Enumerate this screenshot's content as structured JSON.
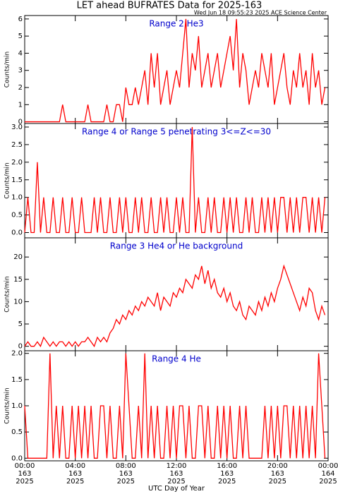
{
  "title": "LET ahead BUFRATES Data for 2025-163",
  "timestamp": "Wed Jun 18 09:55:23 2025 ACE Science Center",
  "xlabel": "UTC Day of Year",
  "chart_data": [
    {
      "type": "line",
      "title": "Range 2 He3",
      "ylabel": "Counts/min",
      "color": "#ff0000",
      "xlim": [
        0,
        24
      ],
      "ylim": [
        -0.1,
        6.2
      ],
      "yticks": [
        0,
        1,
        2,
        3,
        4,
        5,
        6
      ],
      "x": [
        0,
        0.25,
        0.5,
        0.75,
        1,
        1.25,
        1.5,
        1.75,
        2,
        2.25,
        2.5,
        2.75,
        3,
        3.25,
        3.5,
        3.75,
        4,
        4.25,
        4.5,
        4.75,
        5,
        5.25,
        5.5,
        5.75,
        6,
        6.25,
        6.5,
        6.75,
        7,
        7.25,
        7.5,
        7.75,
        8,
        8.25,
        8.5,
        8.75,
        9,
        9.25,
        9.5,
        9.75,
        10,
        10.25,
        10.5,
        10.75,
        11,
        11.25,
        11.5,
        11.75,
        12,
        12.25,
        12.5,
        12.75,
        13,
        13.25,
        13.5,
        13.75,
        14,
        14.25,
        14.5,
        14.75,
        15,
        15.25,
        15.5,
        15.75,
        16,
        16.25,
        16.5,
        16.75,
        17,
        17.25,
        17.5,
        17.75,
        18,
        18.25,
        18.5,
        18.75,
        19,
        19.25,
        19.5,
        19.75,
        20,
        20.25,
        20.5,
        20.75,
        21,
        21.25,
        21.5,
        21.75,
        22,
        22.25,
        22.5,
        22.75,
        23,
        23.25,
        23.5,
        23.75
      ],
      "values": [
        0,
        0,
        0,
        0,
        0,
        0,
        0,
        0,
        0,
        0,
        0,
        0,
        1,
        0,
        0,
        0,
        0,
        0,
        0,
        0,
        1,
        0,
        0,
        0,
        0,
        0,
        1,
        0,
        0,
        1,
        1,
        0,
        2,
        1,
        1,
        2,
        1,
        2,
        3,
        1,
        4,
        2,
        4,
        1,
        2,
        3,
        1,
        2,
        3,
        2,
        4,
        6,
        2,
        4,
        3,
        5,
        2,
        3,
        4,
        2,
        3,
        4,
        2,
        3,
        4,
        5,
        3,
        6,
        2,
        4,
        3,
        1,
        2,
        3,
        2,
        4,
        3,
        2,
        4,
        1,
        2,
        3,
        4,
        2,
        1,
        3,
        2,
        4,
        2,
        3,
        1,
        4,
        2,
        3,
        1,
        2
      ]
    },
    {
      "type": "line",
      "title": "Range 4 or Range 5 penetrating 3<=Z<=30",
      "ylabel": "Counts/min",
      "color": "#ff0000",
      "xlim": [
        0,
        24
      ],
      "ylim": [
        -0.15,
        3.1
      ],
      "yticks": [
        {
          "value": 0,
          "label": "0.0"
        },
        0.5,
        {
          "value": 1,
          "label": "1.0"
        },
        1.5,
        {
          "value": 2,
          "label": "2.0"
        },
        2.5,
        {
          "value": 3,
          "label": "3.0"
        }
      ],
      "x": [
        0,
        0.25,
        0.5,
        0.75,
        1,
        1.25,
        1.5,
        1.75,
        2,
        2.25,
        2.5,
        2.75,
        3,
        3.25,
        3.5,
        3.75,
        4,
        4.25,
        4.5,
        4.75,
        5,
        5.25,
        5.5,
        5.75,
        6,
        6.25,
        6.5,
        6.75,
        7,
        7.25,
        7.5,
        7.75,
        8,
        8.25,
        8.5,
        8.75,
        9,
        9.25,
        9.5,
        9.75,
        10,
        10.25,
        10.5,
        10.75,
        11,
        11.25,
        11.5,
        11.75,
        12,
        12.25,
        12.5,
        12.75,
        13,
        13.25,
        13.5,
        13.75,
        14,
        14.25,
        14.5,
        14.75,
        15,
        15.25,
        15.5,
        15.75,
        16,
        16.25,
        16.5,
        16.75,
        17,
        17.25,
        17.5,
        17.75,
        18,
        18.25,
        18.5,
        18.75,
        19,
        19.25,
        19.5,
        19.75,
        20,
        20.25,
        20.5,
        20.75,
        21,
        21.25,
        21.5,
        21.75,
        22,
        22.25,
        22.5,
        22.75,
        23,
        23.25,
        23.5,
        23.75
      ],
      "values": [
        0,
        1,
        0,
        0,
        2,
        0,
        1,
        0,
        0,
        1,
        0,
        0,
        1,
        0,
        0,
        1,
        0,
        0,
        1,
        0,
        0,
        0,
        1,
        0,
        1,
        0,
        0,
        1,
        0,
        0,
        1,
        0,
        1,
        0,
        0,
        1,
        0,
        1,
        0,
        0,
        1,
        0,
        0,
        1,
        0,
        1,
        0,
        0,
        1,
        0,
        1,
        0,
        0,
        3,
        0,
        1,
        0,
        0,
        1,
        0,
        1,
        0,
        0,
        1,
        0,
        1,
        0,
        1,
        0,
        0,
        1,
        0,
        1,
        0,
        0,
        1,
        0,
        1,
        0,
        1,
        0,
        1,
        1,
        0,
        1,
        0,
        1,
        0,
        1,
        1,
        0,
        1,
        0,
        1,
        0,
        1
      ]
    },
    {
      "type": "line",
      "title": "Range 3 He4 or He background",
      "ylabel": "Counts/min",
      "color": "#ff0000",
      "xlim": [
        0,
        24
      ],
      "ylim": [
        -1,
        24.3
      ],
      "yticks": [
        0,
        5,
        10,
        15,
        20
      ],
      "x": [
        0,
        0.25,
        0.5,
        0.75,
        1,
        1.25,
        1.5,
        1.75,
        2,
        2.25,
        2.5,
        2.75,
        3,
        3.25,
        3.5,
        3.75,
        4,
        4.25,
        4.5,
        4.75,
        5,
        5.25,
        5.5,
        5.75,
        6,
        6.25,
        6.5,
        6.75,
        7,
        7.25,
        7.5,
        7.75,
        8,
        8.25,
        8.5,
        8.75,
        9,
        9.25,
        9.5,
        9.75,
        10,
        10.25,
        10.5,
        10.75,
        11,
        11.25,
        11.5,
        11.75,
        12,
        12.25,
        12.5,
        12.75,
        13,
        13.25,
        13.5,
        13.75,
        14,
        14.25,
        14.5,
        14.75,
        15,
        15.25,
        15.5,
        15.75,
        16,
        16.25,
        16.5,
        16.75,
        17,
        17.25,
        17.5,
        17.75,
        18,
        18.25,
        18.5,
        18.75,
        19,
        19.25,
        19.5,
        19.75,
        20,
        20.25,
        20.5,
        20.75,
        21,
        21.25,
        21.5,
        21.75,
        22,
        22.25,
        22.5,
        22.75,
        23,
        23.25,
        23.5,
        23.75
      ],
      "values": [
        0,
        1,
        0,
        0,
        1,
        0,
        2,
        1,
        0,
        1,
        0,
        1,
        1,
        0,
        1,
        0,
        1,
        0,
        1,
        1,
        2,
        1,
        0,
        2,
        1,
        2,
        1,
        3,
        4,
        6,
        5,
        7,
        6,
        8,
        7,
        9,
        8,
        10,
        9,
        11,
        10,
        9,
        12,
        8,
        11,
        10,
        9,
        12,
        11,
        13,
        12,
        15,
        14,
        13,
        16,
        15,
        18,
        14,
        17,
        13,
        15,
        12,
        11,
        13,
        10,
        12,
        9,
        8,
        10,
        7,
        6,
        9,
        8,
        7,
        10,
        8,
        11,
        9,
        12,
        10,
        13,
        15,
        18,
        16,
        14,
        12,
        10,
        8,
        11,
        9,
        13,
        12,
        8,
        6,
        9,
        7
      ]
    },
    {
      "type": "line",
      "title": "Range 4 He",
      "ylabel": "Counts/min",
      "color": "#ff0000",
      "xlim": [
        0,
        24
      ],
      "ylim": [
        -0.05,
        2.05
      ],
      "yticks": [
        {
          "value": 0,
          "label": "0.0"
        },
        0.5,
        {
          "value": 1,
          "label": "1.0"
        },
        1.5,
        {
          "value": 2,
          "label": "2.0"
        }
      ],
      "xticks": [
        {
          "value": 0,
          "label": "00:00"
        },
        {
          "value": 4,
          "label": "04:00"
        },
        {
          "value": 8,
          "label": "08:00"
        },
        {
          "value": 12,
          "label": "12:00"
        },
        {
          "value": 16,
          "label": "16:00"
        },
        {
          "value": 20,
          "label": "20:00"
        },
        {
          "value": 24,
          "label": "00:00"
        }
      ],
      "xtick_days": [
        "163",
        "163",
        "163",
        "163",
        "163",
        "163",
        "164"
      ],
      "xtick_years": [
        "2025",
        "2025",
        "2025",
        "2025",
        "2025",
        "2025",
        "2025"
      ],
      "x": [
        0,
        0.25,
        0.5,
        0.75,
        1,
        1.25,
        1.5,
        1.75,
        2,
        2.25,
        2.5,
        2.75,
        3,
        3.25,
        3.5,
        3.75,
        4,
        4.25,
        4.5,
        4.75,
        5,
        5.25,
        5.5,
        5.75,
        6,
        6.25,
        6.5,
        6.75,
        7,
        7.25,
        7.5,
        7.75,
        8,
        8.25,
        8.5,
        8.75,
        9,
        9.25,
        9.5,
        9.75,
        10,
        10.25,
        10.5,
        10.75,
        11,
        11.25,
        11.5,
        11.75,
        12,
        12.25,
        12.5,
        12.75,
        13,
        13.25,
        13.5,
        13.75,
        14,
        14.25,
        14.5,
        14.75,
        15,
        15.25,
        15.5,
        15.75,
        16,
        16.25,
        16.5,
        16.75,
        17,
        17.25,
        17.5,
        17.75,
        18,
        18.25,
        18.5,
        18.75,
        19,
        19.25,
        19.5,
        19.75,
        20,
        20.25,
        20.5,
        20.75,
        21,
        21.25,
        21.5,
        21.75,
        22,
        22.25,
        22.5,
        22.75,
        23,
        23.25,
        23.5,
        23.75
      ],
      "values": [
        1,
        0,
        0,
        0,
        0,
        0,
        0,
        0,
        2,
        0,
        1,
        0,
        1,
        0,
        0,
        1,
        0,
        1,
        0,
        1,
        0,
        1,
        0,
        0,
        1,
        1,
        0,
        1,
        0,
        0,
        1,
        0,
        2,
        1,
        0,
        0,
        1,
        0,
        2,
        0,
        1,
        0,
        1,
        0,
        0,
        1,
        0,
        1,
        0,
        1,
        1,
        0,
        1,
        0,
        0,
        1,
        1,
        0,
        1,
        0,
        0,
        1,
        0,
        1,
        0,
        1,
        0,
        0,
        1,
        0,
        1,
        0,
        0,
        0,
        0,
        0,
        1,
        0,
        1,
        0,
        1,
        0,
        1,
        1,
        0,
        1,
        0,
        1,
        0,
        1,
        0,
        1,
        0,
        2,
        1,
        0
      ]
    }
  ]
}
